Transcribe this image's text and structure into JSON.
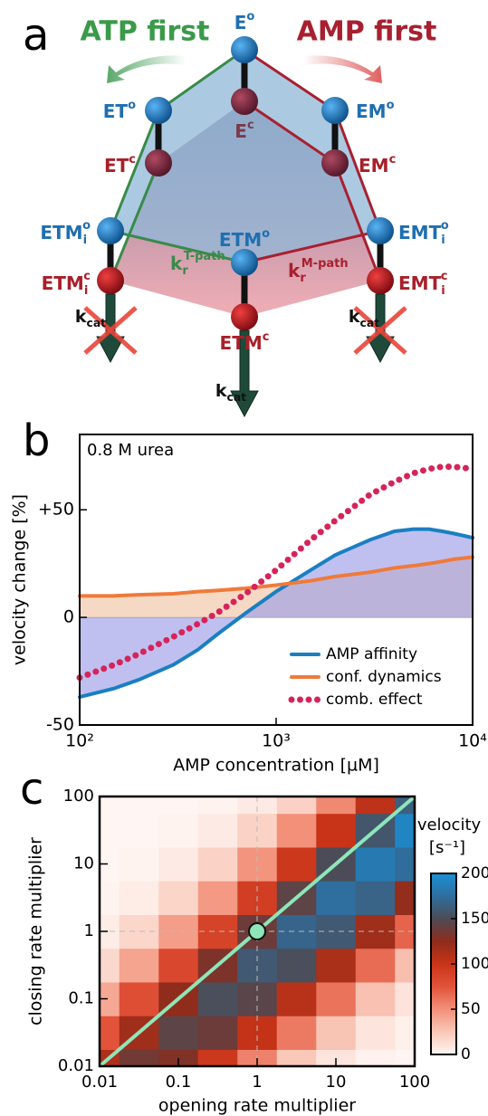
{
  "diagram": {
    "label": "a",
    "headings": [
      "ATP first",
      "AMP first"
    ],
    "nodes": [
      {
        "base": "E",
        "sup": "o"
      },
      {
        "base": "E",
        "sup": "c"
      },
      {
        "base": "ET",
        "sup": "o"
      },
      {
        "base": "EM",
        "sup": "o"
      },
      {
        "base": "ET",
        "sup": "c"
      },
      {
        "base": "EM",
        "sup": "c"
      },
      {
        "base": "ETM",
        "sub": "i",
        "sup": "o"
      },
      {
        "base": "EMT",
        "sub": "i",
        "sup": "o"
      },
      {
        "base": "ETM",
        "sup": "o"
      },
      {
        "base": "ETM",
        "sub": "i",
        "sup": "c"
      },
      {
        "base": "EMT",
        "sub": "i",
        "sup": "c"
      },
      {
        "base": "ETM",
        "sup": "c"
      }
    ],
    "rate_labels": [
      {
        "base": "k",
        "sub": "r",
        "sup": "T-path"
      },
      {
        "base": "k",
        "sub": "r",
        "sup": "M-path"
      }
    ],
    "kcat": [
      {
        "base": "k",
        "sub": "cat"
      },
      {
        "base": "k",
        "sub": "cat"
      },
      {
        "base": "k",
        "sub": "cat"
      }
    ]
  },
  "chart_data": [
    {
      "type": "line",
      "label": "b",
      "annotation": "0.8 M urea",
      "xlabel": "AMP concentration [µM]",
      "ylabel": "velocity change [%]",
      "log_x": true,
      "xlim": [
        100,
        10000
      ],
      "xticks": [
        {
          "value": 100,
          "label": "10²"
        },
        {
          "value": 1000,
          "label": "10³"
        },
        {
          "value": 10000,
          "label": "10⁴"
        }
      ],
      "ylim": [
        -50,
        85
      ],
      "yticks": [
        -50,
        0,
        {
          "value": 50,
          "label": "+50"
        }
      ],
      "legend": "lower right",
      "x": [
        100,
        150,
        200,
        300,
        400,
        500,
        700,
        1000,
        1500,
        2000,
        3000,
        4000,
        5000,
        6000,
        7000,
        8000,
        10000
      ],
      "series": [
        {
          "name": "AMP affinity",
          "color": "#1a7fc1",
          "fill": "#9c9ee8",
          "values": [
            -37,
            -33,
            -29,
            -22,
            -15,
            -8,
            2,
            12,
            22,
            29,
            36,
            40,
            41,
            41,
            40,
            39,
            37
          ]
        },
        {
          "name": "conf. dynamics",
          "color": "#f07a3a",
          "fill": "#efc4a4",
          "values": [
            10,
            10,
            10.5,
            11,
            12,
            12.5,
            13.5,
            15,
            17,
            19,
            21,
            23,
            24,
            25,
            26,
            27,
            28
          ]
        },
        {
          "name": "comb. effect",
          "color": "#d6245a",
          "style": "dotted",
          "values": [
            -28,
            -22,
            -17,
            -9,
            -3,
            2,
            11,
            22,
            36,
            45,
            57,
            63,
            67,
            69,
            70,
            70,
            69
          ]
        }
      ]
    },
    {
      "type": "contour",
      "label": "c",
      "xlabel": "opening rate multiplier",
      "ylabel": "closing rate multiplier",
      "log_x": true,
      "log_y": true,
      "xlim": [
        0.01,
        100
      ],
      "ylim": [
        0.01,
        100
      ],
      "xticks": [
        0.01,
        0.1,
        1,
        10,
        100
      ],
      "yticks": [
        0.01,
        0.1,
        1,
        10,
        100
      ],
      "x": [
        0.01,
        0.03162,
        0.1,
        0.3162,
        1,
        3.162,
        10,
        31.62,
        100
      ],
      "y": [
        0.01,
        0.03162,
        0.1,
        0.3162,
        1,
        3.162,
        10,
        31.62,
        100
      ],
      "z": [
        [
          111,
          136,
          130,
          97,
          56,
          25,
          9,
          2,
          0
        ],
        [
          75,
          118,
          144,
          138,
          102,
          59,
          27,
          9,
          3
        ],
        [
          39,
          79,
          124,
          152,
          145,
          107,
          62,
          28,
          10
        ],
        [
          16,
          41,
          84,
          131,
          160,
          152,
          113,
          65,
          29
        ],
        [
          5,
          17,
          44,
          88,
          138,
          168,
          160,
          118,
          68
        ],
        [
          1,
          5,
          18,
          46,
          92,
          144,
          176,
          167,
          123
        ],
        [
          0,
          1,
          6,
          19,
          48,
          97,
          151,
          184,
          174
        ],
        [
          0,
          0,
          1,
          6,
          19,
          50,
          101,
          158,
          192
        ],
        [
          0,
          0,
          0,
          1,
          6,
          20,
          53,
          105,
          164
        ]
      ],
      "colorbar_title": "velocity",
      "colorbar_unit": "[s⁻¹]",
      "zlim": [
        0,
        200
      ],
      "zticks": [
        0,
        50,
        100,
        150,
        200
      ],
      "colormap": [
        "#fff5f2",
        "#f9c8b8",
        "#f2907a",
        "#e2533a",
        "#c93418",
        "#8e2c1c",
        "#4d4b55",
        "#2f6e9e",
        "#1a90d4"
      ],
      "line": {
        "x": [
          0.01,
          100
        ],
        "y": [
          0.01,
          100
        ],
        "color": "#8ee6b8"
      },
      "marker": {
        "x": 1,
        "y": 1,
        "color": "#8ee6b8"
      }
    }
  ]
}
